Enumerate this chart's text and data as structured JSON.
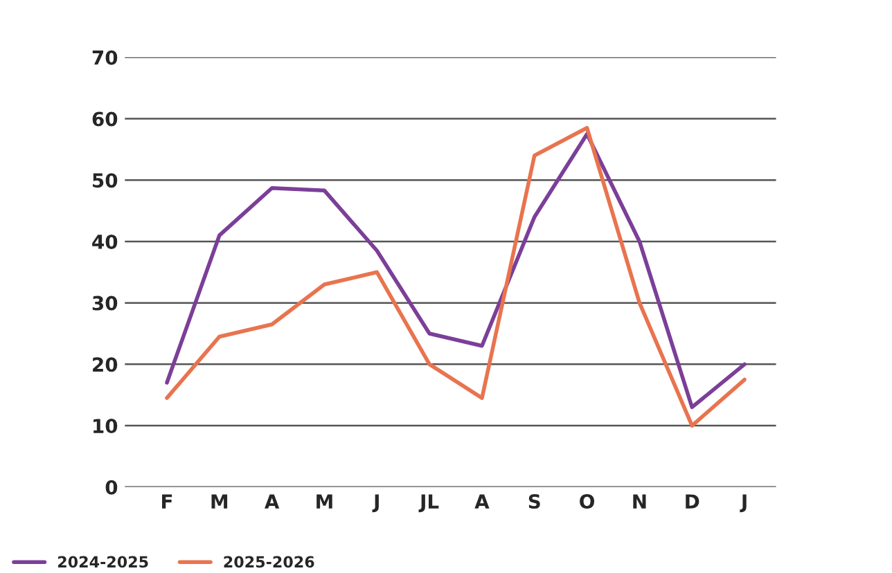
{
  "chart_data": {
    "type": "line",
    "categories": [
      "F",
      "M",
      "A",
      "M",
      "J",
      "JL",
      "A",
      "S",
      "O",
      "N",
      "D",
      "J"
    ],
    "series": [
      {
        "name": "2024-2025",
        "color": "#7b3f98",
        "values": [
          17,
          41,
          48.7,
          48.3,
          38.5,
          25,
          23,
          44,
          57.5,
          40,
          13,
          20
        ]
      },
      {
        "name": "2025-2026",
        "color": "#e8744f",
        "values": [
          14.5,
          24.5,
          26.5,
          33,
          35,
          20,
          14.5,
          54,
          58.5,
          30,
          10,
          17.5
        ]
      }
    ],
    "ylim": [
      0,
      70
    ],
    "yticks": [
      0,
      10,
      20,
      30,
      40,
      50,
      60,
      70
    ],
    "grid": "y",
    "legend": "bottom left",
    "marker": "none",
    "line_style": "solid"
  }
}
